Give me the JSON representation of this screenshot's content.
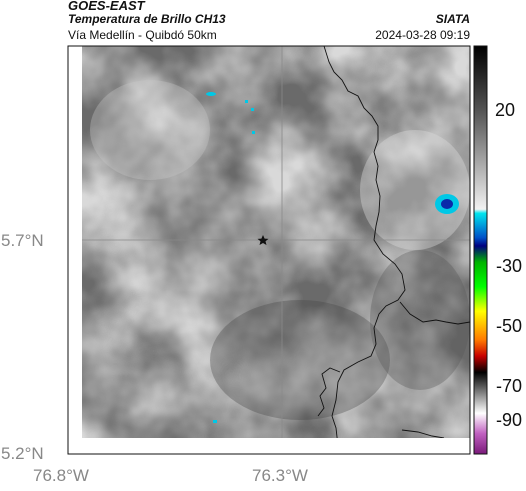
{
  "header": {
    "title_line1": "GOES-EAST",
    "title_line2": "Temperatura de Brillo CH13",
    "subtitle": "Vía Medellín - Quibdó 50km",
    "brand": "SIATA",
    "datetime": "2024-03-28 09:19"
  },
  "map": {
    "lat_ticks": [
      "5.7°N",
      "5.2°N"
    ],
    "lon_ticks": [
      "76.8°W",
      "76.3°W"
    ],
    "marker": "star-marker"
  },
  "colorbar": {
    "ticks": [
      "20",
      "-30",
      "-50",
      "-70",
      "-90"
    ]
  },
  "colors": {
    "gray_dark": "#505050",
    "gray_light": "#d8d8d8",
    "cyan": "#00c8e6",
    "blue": "#0000aa"
  }
}
